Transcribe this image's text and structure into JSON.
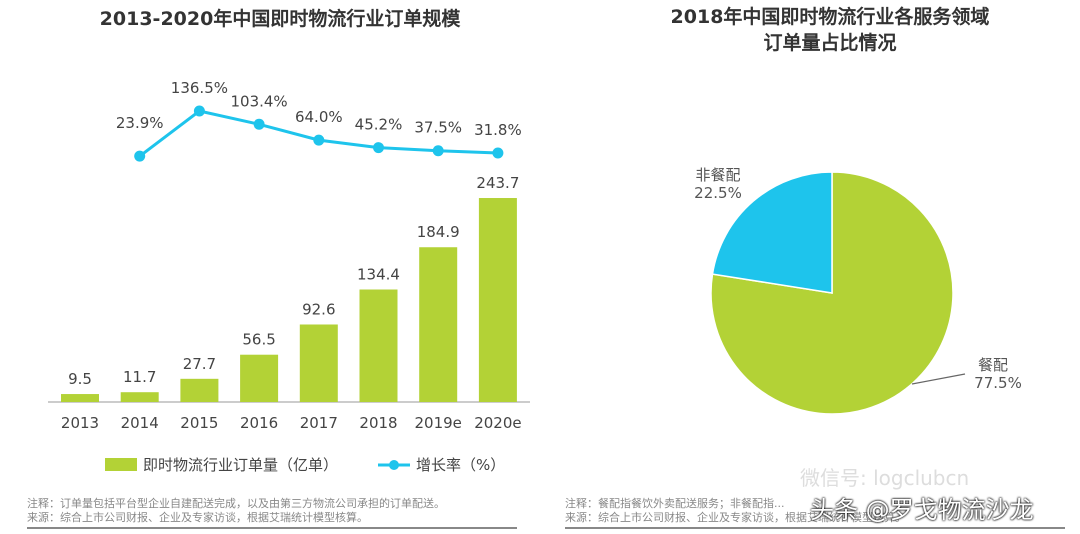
{
  "chart_data": [
    {
      "type": "bar+line",
      "title": "2013-2020年中国即时物流行业订单规模",
      "categories": [
        "2013",
        "2014",
        "2015",
        "2016",
        "2017",
        "2018",
        "2019e",
        "2020e"
      ],
      "series": [
        {
          "name": "即时物流行业订单量（亿单）",
          "type": "bar",
          "values": [
            9.5,
            11.7,
            27.7,
            56.5,
            92.6,
            134.4,
            184.9,
            243.7
          ],
          "color": "#b3d236"
        },
        {
          "name": "增长率（%）",
          "type": "line",
          "values": [
            null,
            23.9,
            136.5,
            103.4,
            64.0,
            45.2,
            37.5,
            31.8
          ],
          "labels": [
            "",
            "23.9%",
            "136.5%",
            "103.4%",
            "64.0%",
            "45.2%",
            "37.5%",
            "31.8%"
          ],
          "color": "#1ec4ec"
        }
      ],
      "legend": "bottom",
      "notes": [
        "注释：订单量包括平台型企业自建配送完成，以及由第三方物流公司承担的订单配送。",
        "来源：综合上市公司财报、企业及专家访谈，根据艾瑞统计模型核算。"
      ]
    },
    {
      "type": "pie",
      "title": "2018年中国即时物流行业各服务领域订单量占比情况",
      "title_lines": [
        "2018年中国即时物流行业各服务领域",
        "订单量占比情况"
      ],
      "slices": [
        {
          "label": "非餐配",
          "value": 22.5,
          "text": "22.5%",
          "color": "#1ec4ec"
        },
        {
          "label": "餐配",
          "value": 77.5,
          "text": "77.5%",
          "color": "#b3d236"
        }
      ],
      "notes": [
        "注释：餐配指餐饮外卖配送服务；非餐配指...",
        "来源：综合上市公司财报、企业及专家访谈，根据艾瑞统计模型核算。"
      ]
    }
  ],
  "watermark": {
    "wechat": "微信号: logclubcn",
    "toutiao": "头条 @罗戈物流沙龙"
  }
}
